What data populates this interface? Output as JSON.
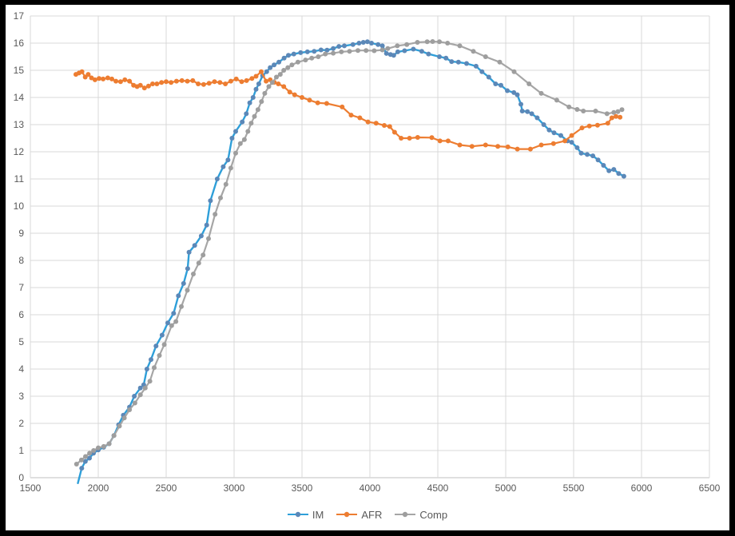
{
  "chart_data": {
    "type": "line",
    "title": "",
    "xlabel": "",
    "ylabel": "",
    "xlim": [
      1500,
      6500
    ],
    "ylim": [
      0,
      17
    ],
    "x_ticks": [
      1500,
      2000,
      2500,
      3000,
      3500,
      4000,
      4500,
      5000,
      5500,
      6000,
      6500
    ],
    "y_ticks": [
      0,
      1,
      2,
      3,
      4,
      5,
      6,
      7,
      8,
      9,
      10,
      11,
      12,
      13,
      14,
      15,
      16,
      17
    ],
    "grid": true,
    "legend_position": "bottom",
    "colors": {
      "grid_line": "#d9d9d9",
      "axis_line": "#bfbfbf",
      "tick_label": "#595959",
      "legend_text": "#595959",
      "background": "#ffffff",
      "frame": "#000000"
    },
    "series": [
      {
        "name": "IM",
        "line_color": "#2e9fd9",
        "marker_color": "#5b88b8",
        "line_width": 2.4,
        "points": [
          [
            1850,
            -0.2
          ],
          [
            1878,
            0.35
          ],
          [
            1905,
            0.6
          ],
          [
            1935,
            0.72
          ],
          [
            1965,
            0.9
          ],
          [
            2000,
            1.02
          ],
          [
            2040,
            1.12
          ],
          [
            2080,
            1.25
          ],
          [
            2115,
            1.55
          ],
          [
            2150,
            1.95
          ],
          [
            2185,
            2.3
          ],
          [
            2230,
            2.6
          ],
          [
            2265,
            3.0
          ],
          [
            2310,
            3.3
          ],
          [
            2335,
            3.42
          ],
          [
            2358,
            4.0
          ],
          [
            2388,
            4.35
          ],
          [
            2425,
            4.85
          ],
          [
            2470,
            5.25
          ],
          [
            2512,
            5.7
          ],
          [
            2555,
            6.05
          ],
          [
            2590,
            6.7
          ],
          [
            2628,
            7.15
          ],
          [
            2658,
            7.7
          ],
          [
            2668,
            8.3
          ],
          [
            2710,
            8.55
          ],
          [
            2758,
            8.9
          ],
          [
            2798,
            9.3
          ],
          [
            2826,
            10.2
          ],
          [
            2876,
            11.0
          ],
          [
            2920,
            11.45
          ],
          [
            2955,
            11.7
          ],
          [
            2985,
            12.5
          ],
          [
            3012,
            12.75
          ],
          [
            3060,
            13.1
          ],
          [
            3090,
            13.4
          ],
          [
            3115,
            13.8
          ],
          [
            3140,
            14.0
          ],
          [
            3162,
            14.3
          ],
          [
            3182,
            14.5
          ],
          [
            3210,
            14.8
          ],
          [
            3240,
            14.95
          ],
          [
            3266,
            15.1
          ],
          [
            3295,
            15.2
          ],
          [
            3330,
            15.3
          ],
          [
            3368,
            15.45
          ],
          [
            3400,
            15.55
          ],
          [
            3440,
            15.6
          ],
          [
            3490,
            15.65
          ],
          [
            3540,
            15.68
          ],
          [
            3590,
            15.7
          ],
          [
            3640,
            15.75
          ],
          [
            3685,
            15.74
          ],
          [
            3730,
            15.8
          ],
          [
            3772,
            15.88
          ],
          [
            3812,
            15.9
          ],
          [
            3875,
            15.95
          ],
          [
            3920,
            16.0
          ],
          [
            3952,
            16.03
          ],
          [
            3982,
            16.05
          ],
          [
            4012,
            16.0
          ],
          [
            4060,
            15.95
          ],
          [
            4092,
            15.9
          ],
          [
            4122,
            15.62
          ],
          [
            4152,
            15.58
          ],
          [
            4175,
            15.55
          ],
          [
            4205,
            15.68
          ],
          [
            4255,
            15.72
          ],
          [
            4320,
            15.78
          ],
          [
            4382,
            15.7
          ],
          [
            4432,
            15.6
          ],
          [
            4512,
            15.5
          ],
          [
            4560,
            15.45
          ],
          [
            4602,
            15.32
          ],
          [
            4652,
            15.3
          ],
          [
            4712,
            15.25
          ],
          [
            4782,
            15.15
          ],
          [
            4825,
            14.95
          ],
          [
            4875,
            14.75
          ],
          [
            4925,
            14.5
          ],
          [
            4965,
            14.45
          ],
          [
            5012,
            14.25
          ],
          [
            5060,
            14.18
          ],
          [
            5085,
            14.1
          ],
          [
            5112,
            13.75
          ],
          [
            5122,
            13.5
          ],
          [
            5160,
            13.48
          ],
          [
            5192,
            13.4
          ],
          [
            5232,
            13.25
          ],
          [
            5280,
            13.0
          ],
          [
            5320,
            12.8
          ],
          [
            5356,
            12.7
          ],
          [
            5406,
            12.6
          ],
          [
            5455,
            12.4
          ],
          [
            5486,
            12.35
          ],
          [
            5526,
            12.15
          ],
          [
            5556,
            11.95
          ],
          [
            5600,
            11.9
          ],
          [
            5642,
            11.85
          ],
          [
            5680,
            11.7
          ],
          [
            5720,
            11.5
          ],
          [
            5760,
            11.3
          ],
          [
            5796,
            11.35
          ],
          [
            5832,
            11.2
          ],
          [
            5870,
            11.1
          ]
        ]
      },
      {
        "name": "AFR",
        "line_color": "#ed7d31",
        "marker_color": "#ed7d31",
        "line_width": 2.2,
        "points": [
          [
            1835,
            14.85
          ],
          [
            1858,
            14.9
          ],
          [
            1880,
            14.95
          ],
          [
            1904,
            14.75
          ],
          [
            1926,
            14.85
          ],
          [
            1950,
            14.72
          ],
          [
            1976,
            14.65
          ],
          [
            2006,
            14.7
          ],
          [
            2036,
            14.68
          ],
          [
            2070,
            14.72
          ],
          [
            2100,
            14.68
          ],
          [
            2130,
            14.6
          ],
          [
            2164,
            14.58
          ],
          [
            2196,
            14.65
          ],
          [
            2230,
            14.6
          ],
          [
            2260,
            14.45
          ],
          [
            2286,
            14.4
          ],
          [
            2310,
            14.45
          ],
          [
            2340,
            14.35
          ],
          [
            2370,
            14.42
          ],
          [
            2400,
            14.5
          ],
          [
            2432,
            14.5
          ],
          [
            2466,
            14.55
          ],
          [
            2500,
            14.58
          ],
          [
            2536,
            14.55
          ],
          [
            2576,
            14.6
          ],
          [
            2616,
            14.62
          ],
          [
            2656,
            14.6
          ],
          [
            2696,
            14.62
          ],
          [
            2736,
            14.5
          ],
          [
            2776,
            14.48
          ],
          [
            2816,
            14.52
          ],
          [
            2856,
            14.58
          ],
          [
            2896,
            14.55
          ],
          [
            2936,
            14.5
          ],
          [
            2976,
            14.6
          ],
          [
            3016,
            14.68
          ],
          [
            3056,
            14.58
          ],
          [
            3092,
            14.62
          ],
          [
            3132,
            14.7
          ],
          [
            3162,
            14.78
          ],
          [
            3200,
            14.95
          ],
          [
            3236,
            14.6
          ],
          [
            3266,
            14.65
          ],
          [
            3296,
            14.56
          ],
          [
            3326,
            14.5
          ],
          [
            3366,
            14.4
          ],
          [
            3410,
            14.2
          ],
          [
            3446,
            14.1
          ],
          [
            3500,
            14.0
          ],
          [
            3556,
            13.9
          ],
          [
            3616,
            13.8
          ],
          [
            3682,
            13.78
          ],
          [
            3796,
            13.65
          ],
          [
            3862,
            13.35
          ],
          [
            3926,
            13.25
          ],
          [
            3986,
            13.1
          ],
          [
            4046,
            13.05
          ],
          [
            4106,
            12.97
          ],
          [
            4146,
            12.93
          ],
          [
            4182,
            12.72
          ],
          [
            4230,
            12.5
          ],
          [
            4292,
            12.5
          ],
          [
            4352,
            12.53
          ],
          [
            4456,
            12.52
          ],
          [
            4516,
            12.4
          ],
          [
            4576,
            12.4
          ],
          [
            4662,
            12.25
          ],
          [
            4752,
            12.2
          ],
          [
            4852,
            12.25
          ],
          [
            4942,
            12.2
          ],
          [
            5016,
            12.18
          ],
          [
            5086,
            12.1
          ],
          [
            5182,
            12.1
          ],
          [
            5262,
            12.25
          ],
          [
            5352,
            12.3
          ],
          [
            5436,
            12.4
          ],
          [
            5486,
            12.6
          ],
          [
            5562,
            12.88
          ],
          [
            5616,
            12.95
          ],
          [
            5676,
            12.98
          ],
          [
            5752,
            13.05
          ],
          [
            5782,
            13.25
          ],
          [
            5812,
            13.3
          ],
          [
            5842,
            13.27
          ]
        ]
      },
      {
        "name": "Comp",
        "line_color": "#a6a6a6",
        "marker_color": "#9e9e9e",
        "line_width": 2.2,
        "points": [
          [
            1840,
            0.5
          ],
          [
            1876,
            0.65
          ],
          [
            1906,
            0.78
          ],
          [
            1936,
            0.9
          ],
          [
            1966,
            1.0
          ],
          [
            2000,
            1.1
          ],
          [
            2040,
            1.15
          ],
          [
            2080,
            1.25
          ],
          [
            2116,
            1.55
          ],
          [
            2156,
            1.9
          ],
          [
            2192,
            2.2
          ],
          [
            2230,
            2.5
          ],
          [
            2270,
            2.75
          ],
          [
            2310,
            3.05
          ],
          [
            2346,
            3.3
          ],
          [
            2380,
            3.55
          ],
          [
            2412,
            4.05
          ],
          [
            2450,
            4.5
          ],
          [
            2486,
            4.9
          ],
          [
            2540,
            5.6
          ],
          [
            2572,
            5.75
          ],
          [
            2612,
            6.3
          ],
          [
            2656,
            6.9
          ],
          [
            2700,
            7.5
          ],
          [
            2740,
            7.9
          ],
          [
            2772,
            8.2
          ],
          [
            2812,
            8.8
          ],
          [
            2860,
            9.7
          ],
          [
            2900,
            10.3
          ],
          [
            2940,
            10.8
          ],
          [
            2976,
            11.4
          ],
          [
            3012,
            11.95
          ],
          [
            3046,
            12.3
          ],
          [
            3076,
            12.45
          ],
          [
            3102,
            12.75
          ],
          [
            3126,
            13.05
          ],
          [
            3150,
            13.3
          ],
          [
            3176,
            13.55
          ],
          [
            3202,
            13.85
          ],
          [
            3226,
            14.15
          ],
          [
            3256,
            14.4
          ],
          [
            3282,
            14.55
          ],
          [
            3312,
            14.75
          ],
          [
            3340,
            14.85
          ],
          [
            3366,
            15.0
          ],
          [
            3396,
            15.1
          ],
          [
            3426,
            15.2
          ],
          [
            3470,
            15.3
          ],
          [
            3526,
            15.38
          ],
          [
            3572,
            15.45
          ],
          [
            3620,
            15.5
          ],
          [
            3672,
            15.6
          ],
          [
            3730,
            15.63
          ],
          [
            3790,
            15.68
          ],
          [
            3850,
            15.7
          ],
          [
            3912,
            15.73
          ],
          [
            3972,
            15.73
          ],
          [
            4032,
            15.72
          ],
          [
            4092,
            15.75
          ],
          [
            4132,
            15.8
          ],
          [
            4202,
            15.9
          ],
          [
            4272,
            15.95
          ],
          [
            4350,
            16.03
          ],
          [
            4422,
            16.05
          ],
          [
            4462,
            16.06
          ],
          [
            4512,
            16.05
          ],
          [
            4572,
            16.0
          ],
          [
            4662,
            15.9
          ],
          [
            4762,
            15.7
          ],
          [
            4852,
            15.5
          ],
          [
            4956,
            15.3
          ],
          [
            5062,
            14.95
          ],
          [
            5172,
            14.5
          ],
          [
            5262,
            14.15
          ],
          [
            5376,
            13.9
          ],
          [
            5466,
            13.65
          ],
          [
            5526,
            13.56
          ],
          [
            5572,
            13.5
          ],
          [
            5662,
            13.5
          ],
          [
            5746,
            13.4
          ],
          [
            5796,
            13.45
          ],
          [
            5826,
            13.48
          ],
          [
            5856,
            13.55
          ]
        ]
      }
    ]
  }
}
